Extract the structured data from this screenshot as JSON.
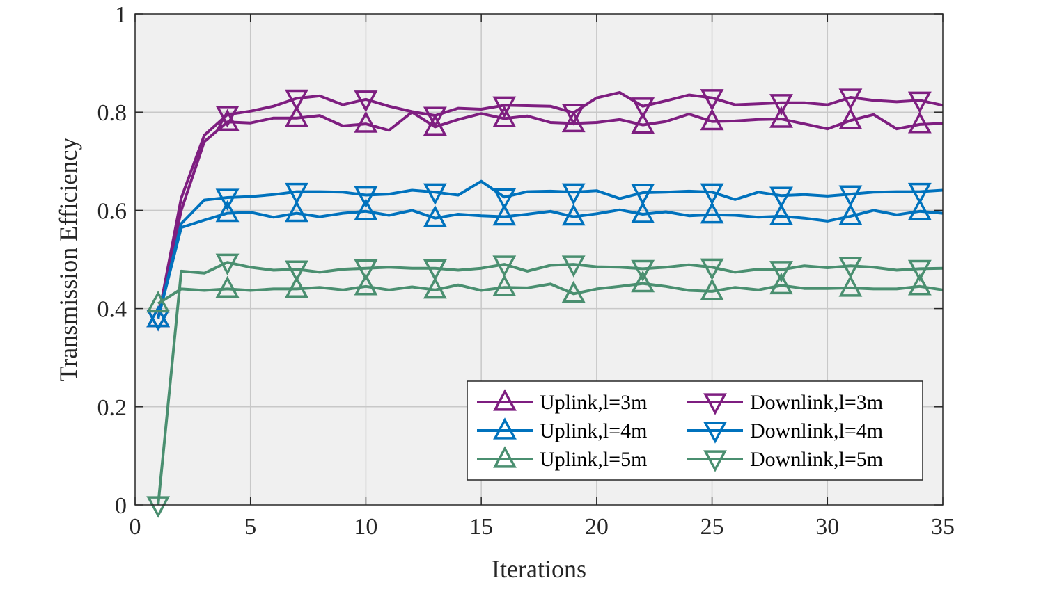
{
  "chart_data": {
    "type": "line",
    "title": "",
    "xlabel": "Iterations",
    "ylabel": "Transmission Efficiency",
    "xlim": [
      0,
      35
    ],
    "ylim": [
      0,
      1
    ],
    "xticks": [
      0,
      5,
      10,
      15,
      20,
      25,
      30,
      35
    ],
    "yticks": [
      0,
      0.2,
      0.4,
      0.6,
      0.8,
      1
    ],
    "xtick_labels": [
      "0",
      "5",
      "10",
      "15",
      "20",
      "25",
      "30",
      "35"
    ],
    "ytick_labels": [
      "0",
      "0.2",
      "0.4",
      "0.6",
      "0.8",
      "1"
    ],
    "grid": true,
    "legend_position": "bottom-right",
    "marker_every": 3,
    "x": [
      1,
      2,
      3,
      4,
      5,
      6,
      7,
      8,
      9,
      10,
      11,
      12,
      13,
      14,
      15,
      16,
      17,
      18,
      19,
      20,
      21,
      22,
      23,
      24,
      25,
      26,
      27,
      28,
      29,
      30,
      31,
      32,
      33,
      34,
      35
    ],
    "series": [
      {
        "name": "Uplink,l=3m",
        "color": "#7E1E80",
        "marker": "triangle-up",
        "values": [
          0.38,
          0.6,
          0.74,
          0.78,
          0.778,
          0.788,
          0.788,
          0.793,
          0.772,
          0.776,
          0.763,
          0.8,
          0.77,
          0.785,
          0.797,
          0.787,
          0.792,
          0.779,
          0.777,
          0.779,
          0.785,
          0.774,
          0.781,
          0.796,
          0.781,
          0.782,
          0.785,
          0.786,
          0.776,
          0.766,
          0.783,
          0.795,
          0.766,
          0.775,
          0.777
        ]
      },
      {
        "name": "Downlink,l=3m",
        "color": "#7E1E80",
        "marker": "triangle-down",
        "values": [
          0.38,
          0.625,
          0.753,
          0.795,
          0.802,
          0.812,
          0.828,
          0.833,
          0.815,
          0.826,
          0.812,
          0.801,
          0.793,
          0.808,
          0.806,
          0.814,
          0.813,
          0.812,
          0.799,
          0.829,
          0.84,
          0.812,
          0.823,
          0.835,
          0.829,
          0.815,
          0.817,
          0.819,
          0.819,
          0.815,
          0.83,
          0.824,
          0.821,
          0.824,
          0.814
        ]
      },
      {
        "name": "Uplink,l=4m",
        "color": "#0072BD",
        "marker": "triangle-up",
        "values": [
          0.38,
          0.565,
          0.58,
          0.594,
          0.596,
          0.586,
          0.594,
          0.587,
          0.594,
          0.598,
          0.59,
          0.6,
          0.584,
          0.592,
          0.589,
          0.587,
          0.592,
          0.598,
          0.587,
          0.593,
          0.601,
          0.592,
          0.597,
          0.589,
          0.591,
          0.59,
          0.586,
          0.588,
          0.584,
          0.578,
          0.588,
          0.6,
          0.591,
          0.598,
          0.594
        ]
      },
      {
        "name": "Downlink,l=4m",
        "color": "#0072BD",
        "marker": "triangle-down",
        "values": [
          0.38,
          0.573,
          0.621,
          0.626,
          0.628,
          0.632,
          0.638,
          0.638,
          0.637,
          0.631,
          0.633,
          0.641,
          0.637,
          0.631,
          0.659,
          0.627,
          0.638,
          0.639,
          0.637,
          0.64,
          0.624,
          0.636,
          0.637,
          0.639,
          0.637,
          0.622,
          0.637,
          0.63,
          0.632,
          0.629,
          0.633,
          0.637,
          0.638,
          0.638,
          0.641
        ]
      },
      {
        "name": "Uplink,l=5m",
        "color": "#4A8F70",
        "marker": "triangle-up",
        "values": [
          0.41,
          0.44,
          0.437,
          0.44,
          0.437,
          0.44,
          0.44,
          0.443,
          0.438,
          0.445,
          0.438,
          0.444,
          0.438,
          0.448,
          0.437,
          0.443,
          0.442,
          0.45,
          0.43,
          0.44,
          0.445,
          0.451,
          0.445,
          0.437,
          0.435,
          0.443,
          0.438,
          0.447,
          0.441,
          0.441,
          0.442,
          0.44,
          0.44,
          0.445,
          0.438
        ]
      },
      {
        "name": "Downlink,l=5m",
        "color": "#4A8F70",
        "marker": "triangle-down",
        "values": [
          0,
          0.476,
          0.472,
          0.494,
          0.484,
          0.478,
          0.48,
          0.474,
          0.48,
          0.482,
          0.484,
          0.482,
          0.482,
          0.478,
          0.482,
          0.49,
          0.476,
          0.488,
          0.49,
          0.485,
          0.484,
          0.481,
          0.484,
          0.489,
          0.484,
          0.474,
          0.48,
          0.479,
          0.487,
          0.483,
          0.487,
          0.484,
          0.478,
          0.481,
          0.482
        ]
      }
    ]
  }
}
